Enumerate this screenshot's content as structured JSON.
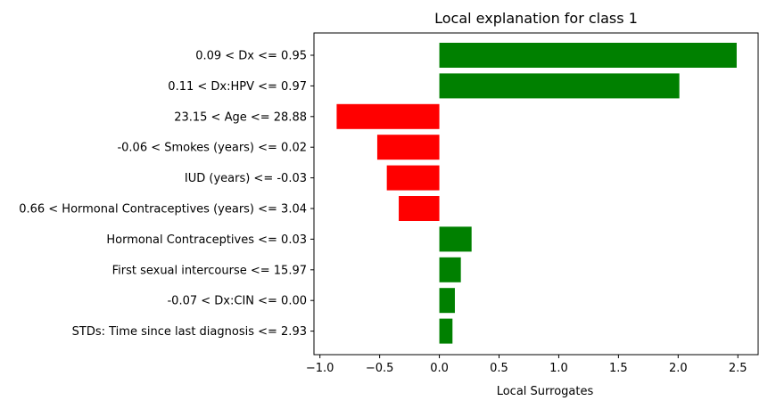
{
  "chart_data": {
    "type": "bar",
    "orientation": "horizontal",
    "title": "Local explanation for class 1",
    "xlabel": "Local Surrogates",
    "ylabel": "",
    "xlim": [
      -1.05,
      2.67
    ],
    "xticks": [
      -1.0,
      -0.5,
      0.0,
      0.5,
      1.0,
      1.5,
      2.0,
      2.5
    ],
    "xtick_labels": [
      "−1.0",
      "−0.5",
      "0.0",
      "0.5",
      "1.0",
      "1.5",
      "2.0",
      "2.5"
    ],
    "grid": false,
    "legend": "none",
    "categories": [
      "0.09 < Dx <= 0.95",
      "0.11 < Dx:HPV <= 0.97",
      "23.15 < Age <= 28.88",
      "-0.06 < Smokes (years) <= 0.02",
      "IUD (years) <= -0.03",
      "0.66 < Hormonal Contraceptives (years) <= 3.04",
      "Hormonal Contraceptives <= 0.03",
      "First sexual intercourse <= 15.97",
      "-0.07 < Dx:CIN <= 0.00",
      "STDs: Time since last diagnosis <= 2.93"
    ],
    "values": [
      2.49,
      2.01,
      -0.86,
      -0.52,
      -0.44,
      -0.34,
      0.27,
      0.18,
      0.13,
      0.11
    ],
    "colors": {
      "positive": "#008000",
      "negative": "#ff0000"
    }
  }
}
